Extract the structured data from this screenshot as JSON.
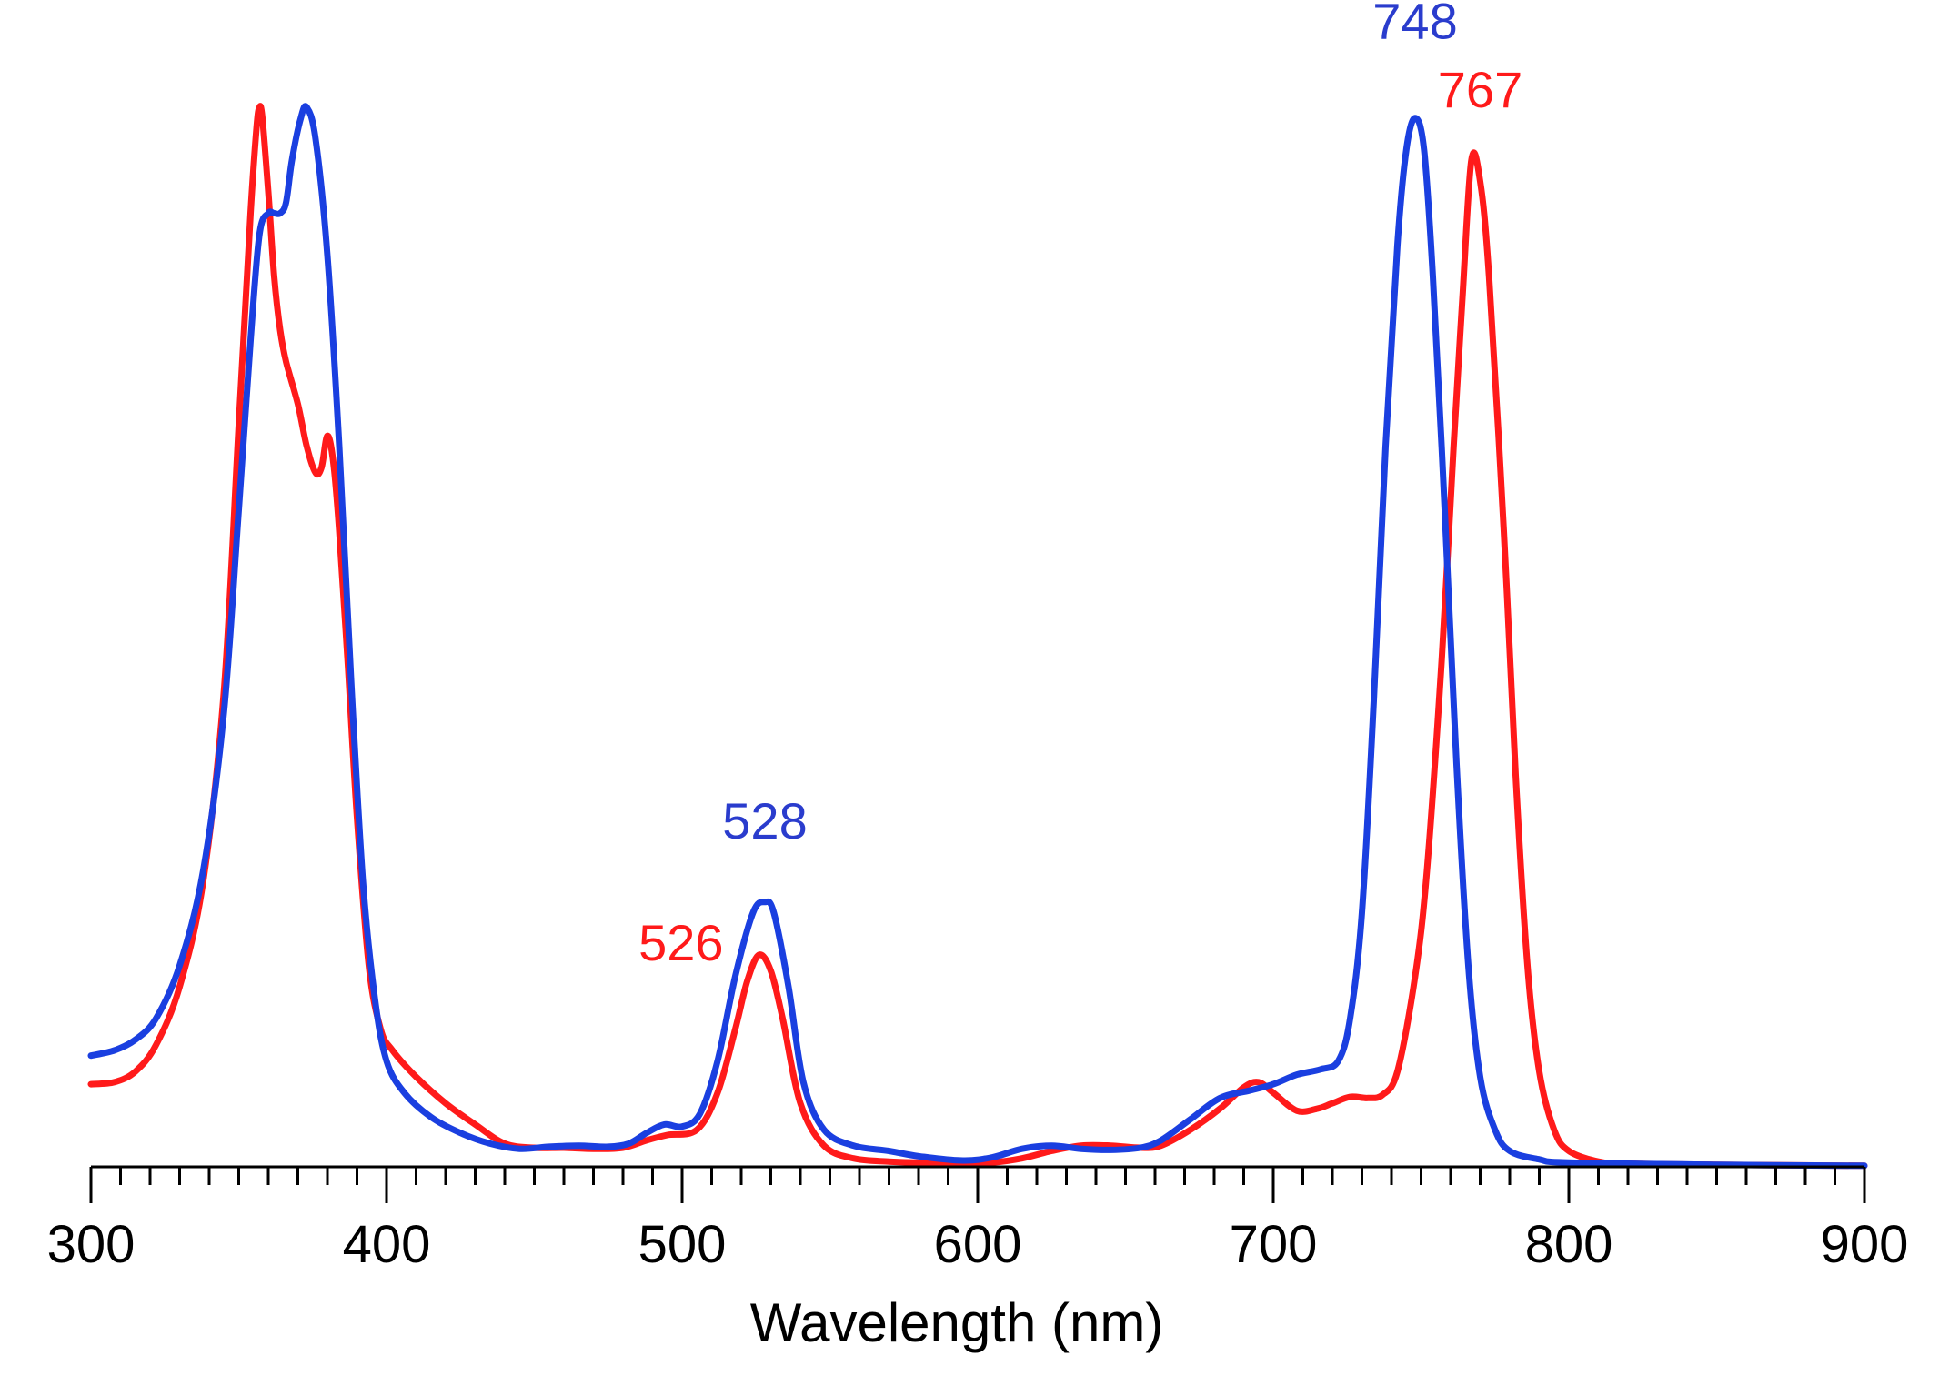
{
  "chart_data": {
    "type": "line",
    "title": "",
    "xlabel": "Wavelength (nm)",
    "ylabel": "",
    "xlim": [
      300,
      900
    ],
    "ylim": [
      0,
      1.0
    ],
    "x_major_ticks": [
      300,
      400,
      500,
      600,
      700,
      800,
      900
    ],
    "x_tick_labels": [
      "300",
      "400",
      "500",
      "600",
      "700",
      "800",
      "900"
    ],
    "x_minor_step": 10,
    "grid": false,
    "series": [
      {
        "name": "red",
        "color": "#ff1a1a",
        "points": [
          [
            300,
            0.078
          ],
          [
            308,
            0.08
          ],
          [
            315,
            0.09
          ],
          [
            322,
            0.115
          ],
          [
            330,
            0.17
          ],
          [
            338,
            0.27
          ],
          [
            345,
            0.45
          ],
          [
            350,
            0.7
          ],
          [
            354,
            0.9
          ],
          [
            356,
            0.98
          ],
          [
            357,
            1.0
          ],
          [
            358,
            0.99
          ],
          [
            360,
            0.92
          ],
          [
            362,
            0.84
          ],
          [
            364,
            0.79
          ],
          [
            366,
            0.76
          ],
          [
            370,
            0.72
          ],
          [
            373,
            0.68
          ],
          [
            376,
            0.655
          ],
          [
            378,
            0.66
          ],
          [
            380,
            0.69
          ],
          [
            382,
            0.665
          ],
          [
            384,
            0.6
          ],
          [
            387,
            0.47
          ],
          [
            390,
            0.33
          ],
          [
            394,
            0.19
          ],
          [
            398,
            0.13
          ],
          [
            402,
            0.11
          ],
          [
            410,
            0.085
          ],
          [
            420,
            0.06
          ],
          [
            430,
            0.04
          ],
          [
            440,
            0.022
          ],
          [
            450,
            0.018
          ],
          [
            460,
            0.018
          ],
          [
            470,
            0.017
          ],
          [
            480,
            0.018
          ],
          [
            488,
            0.025
          ],
          [
            495,
            0.03
          ],
          [
            505,
            0.035
          ],
          [
            512,
            0.07
          ],
          [
            518,
            0.13
          ],
          [
            522,
            0.175
          ],
          [
            526,
            0.2
          ],
          [
            530,
            0.185
          ],
          [
            534,
            0.14
          ],
          [
            540,
            0.06
          ],
          [
            548,
            0.02
          ],
          [
            558,
            0.008
          ],
          [
            570,
            0.005
          ],
          [
            580,
            0.004
          ],
          [
            595,
            0.003
          ],
          [
            605,
            0.004
          ],
          [
            615,
            0.008
          ],
          [
            625,
            0.015
          ],
          [
            635,
            0.02
          ],
          [
            645,
            0.02
          ],
          [
            655,
            0.018
          ],
          [
            662,
            0.02
          ],
          [
            672,
            0.035
          ],
          [
            682,
            0.055
          ],
          [
            690,
            0.075
          ],
          [
            695,
            0.08
          ],
          [
            700,
            0.07
          ],
          [
            708,
            0.053
          ],
          [
            715,
            0.055
          ],
          [
            720,
            0.06
          ],
          [
            726,
            0.066
          ],
          [
            732,
            0.065
          ],
          [
            737,
            0.068
          ],
          [
            742,
            0.09
          ],
          [
            748,
            0.18
          ],
          [
            752,
            0.28
          ],
          [
            757,
            0.48
          ],
          [
            761,
            0.68
          ],
          [
            764,
            0.82
          ],
          [
            767,
            0.95
          ],
          [
            770,
            0.93
          ],
          [
            773,
            0.84
          ],
          [
            778,
            0.6
          ],
          [
            782,
            0.37
          ],
          [
            786,
            0.19
          ],
          [
            790,
            0.09
          ],
          [
            795,
            0.035
          ],
          [
            800,
            0.015
          ],
          [
            810,
            0.005
          ],
          [
            820,
            0.003
          ],
          [
            850,
            0.002
          ],
          [
            900,
            0.001
          ]
        ]
      },
      {
        "name": "blue",
        "color": "#1a3fe0",
        "points": [
          [
            300,
            0.105
          ],
          [
            308,
            0.11
          ],
          [
            315,
            0.12
          ],
          [
            322,
            0.14
          ],
          [
            330,
            0.19
          ],
          [
            338,
            0.28
          ],
          [
            345,
            0.43
          ],
          [
            350,
            0.62
          ],
          [
            354,
            0.78
          ],
          [
            357,
            0.88
          ],
          [
            360,
            0.9
          ],
          [
            362,
            0.9
          ],
          [
            364,
            0.9
          ],
          [
            366,
            0.91
          ],
          [
            368,
            0.95
          ],
          [
            371,
            0.99
          ],
          [
            373,
            1.0
          ],
          [
            376,
            0.97
          ],
          [
            380,
            0.86
          ],
          [
            384,
            0.68
          ],
          [
            388,
            0.46
          ],
          [
            392,
            0.27
          ],
          [
            396,
            0.16
          ],
          [
            400,
            0.1
          ],
          [
            406,
            0.07
          ],
          [
            415,
            0.047
          ],
          [
            425,
            0.032
          ],
          [
            435,
            0.022
          ],
          [
            445,
            0.017
          ],
          [
            455,
            0.019
          ],
          [
            465,
            0.02
          ],
          [
            475,
            0.019
          ],
          [
            482,
            0.022
          ],
          [
            488,
            0.032
          ],
          [
            494,
            0.04
          ],
          [
            500,
            0.038
          ],
          [
            506,
            0.05
          ],
          [
            512,
            0.1
          ],
          [
            518,
            0.18
          ],
          [
            524,
            0.24
          ],
          [
            528,
            0.25
          ],
          [
            531,
            0.24
          ],
          [
            536,
            0.17
          ],
          [
            541,
            0.08
          ],
          [
            548,
            0.035
          ],
          [
            558,
            0.02
          ],
          [
            570,
            0.015
          ],
          [
            580,
            0.01
          ],
          [
            595,
            0.006
          ],
          [
            605,
            0.009
          ],
          [
            615,
            0.017
          ],
          [
            625,
            0.02
          ],
          [
            635,
            0.017
          ],
          [
            645,
            0.016
          ],
          [
            655,
            0.018
          ],
          [
            662,
            0.025
          ],
          [
            672,
            0.045
          ],
          [
            682,
            0.065
          ],
          [
            692,
            0.072
          ],
          [
            700,
            0.078
          ],
          [
            708,
            0.087
          ],
          [
            716,
            0.092
          ],
          [
            722,
            0.1
          ],
          [
            726,
            0.14
          ],
          [
            730,
            0.24
          ],
          [
            734,
            0.44
          ],
          [
            738,
            0.68
          ],
          [
            742,
            0.87
          ],
          [
            745,
            0.96
          ],
          [
            748,
            0.99
          ],
          [
            751,
            0.96
          ],
          [
            754,
            0.84
          ],
          [
            758,
            0.62
          ],
          [
            762,
            0.38
          ],
          [
            766,
            0.19
          ],
          [
            770,
            0.085
          ],
          [
            775,
            0.035
          ],
          [
            780,
            0.015
          ],
          [
            790,
            0.007
          ],
          [
            800,
            0.004
          ],
          [
            850,
            0.002
          ],
          [
            900,
            0.001
          ]
        ]
      }
    ],
    "annotations": [
      {
        "text": "748",
        "x": 748,
        "y": 1.065,
        "color": "#2a3ccd",
        "anchor": "middle"
      },
      {
        "text": "767",
        "x": 770,
        "y": 1.0,
        "color": "#ff1a1a",
        "anchor": "middle"
      },
      {
        "text": "528",
        "x": 528,
        "y": 0.31,
        "color": "#2a3ccd",
        "anchor": "middle"
      },
      {
        "text": "526",
        "x": 514,
        "y": 0.195,
        "color": "#ff1a1a",
        "anchor": "end"
      }
    ]
  }
}
